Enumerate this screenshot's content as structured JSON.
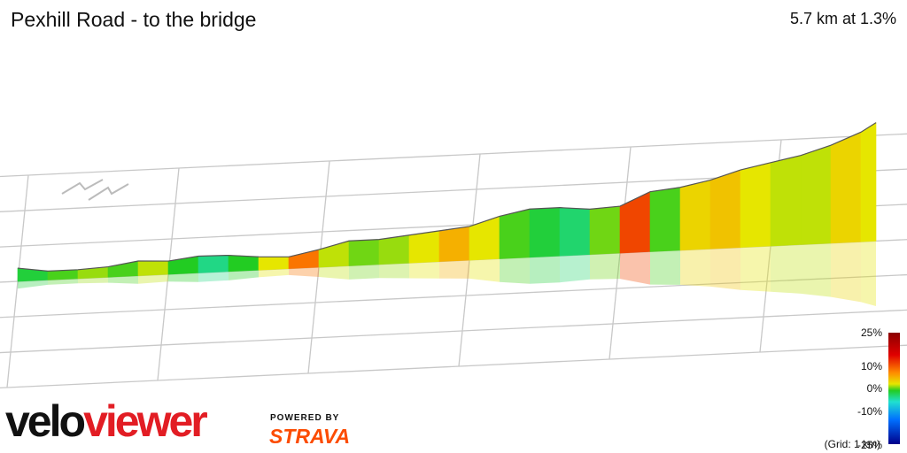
{
  "header": {
    "title": "Pexhill Road - to the bridge",
    "summary": "5.7 km at 1.3%"
  },
  "legend": {
    "ticks": [
      "25%",
      "10%",
      "0%",
      "-10%",
      "-25%"
    ],
    "grid_note": "(Grid: 1 km)"
  },
  "branding": {
    "logo_part1": "velo",
    "logo_part2": "viewer",
    "powered_by": "POWERED BY",
    "strava": "STRAVA"
  },
  "colors": {
    "brand_red": "#e21d24",
    "strava_orange": "#fc4c02",
    "steep": "#8b0000",
    "flat": "#22cc22",
    "descent": "#00008b"
  },
  "chart_data": {
    "type": "area",
    "title": "Pexhill Road - to the bridge",
    "x_unit": "km",
    "y_unit": "m",
    "distance_km": 5.7,
    "average_grade_pct": 1.3,
    "grid_km": 1,
    "grade_scale": {
      "min": -25,
      "max": 25,
      "ticks": [
        25,
        10,
        0,
        -10,
        -25
      ]
    },
    "distance": [
      0,
      0.2,
      0.4,
      0.6,
      0.8,
      1.0,
      1.2,
      1.4,
      1.6,
      1.8,
      2.0,
      2.2,
      2.4,
      2.6,
      2.8,
      3.0,
      3.2,
      3.4,
      3.6,
      3.8,
      4.0,
      4.2,
      4.4,
      4.6,
      4.8,
      5.0,
      5.2,
      5.4,
      5.6,
      5.7
    ],
    "elevation": [
      0,
      -1.5,
      -1.5,
      -1,
      0.5,
      0,
      1.2,
      1,
      0,
      -0.5,
      1.5,
      4,
      4,
      5,
      6,
      7,
      10,
      12,
      12,
      11,
      11.5,
      16,
      17,
      19,
      22,
      24,
      26,
      29,
      33,
      36
    ],
    "grade_pct": [
      -7,
      0,
      2,
      4,
      2,
      5,
      1,
      -3,
      1,
      6,
      12,
      5,
      3,
      4,
      6,
      9,
      6,
      2,
      0,
      -2,
      3,
      14,
      2,
      7,
      8,
      6,
      5,
      5,
      7,
      6
    ]
  }
}
